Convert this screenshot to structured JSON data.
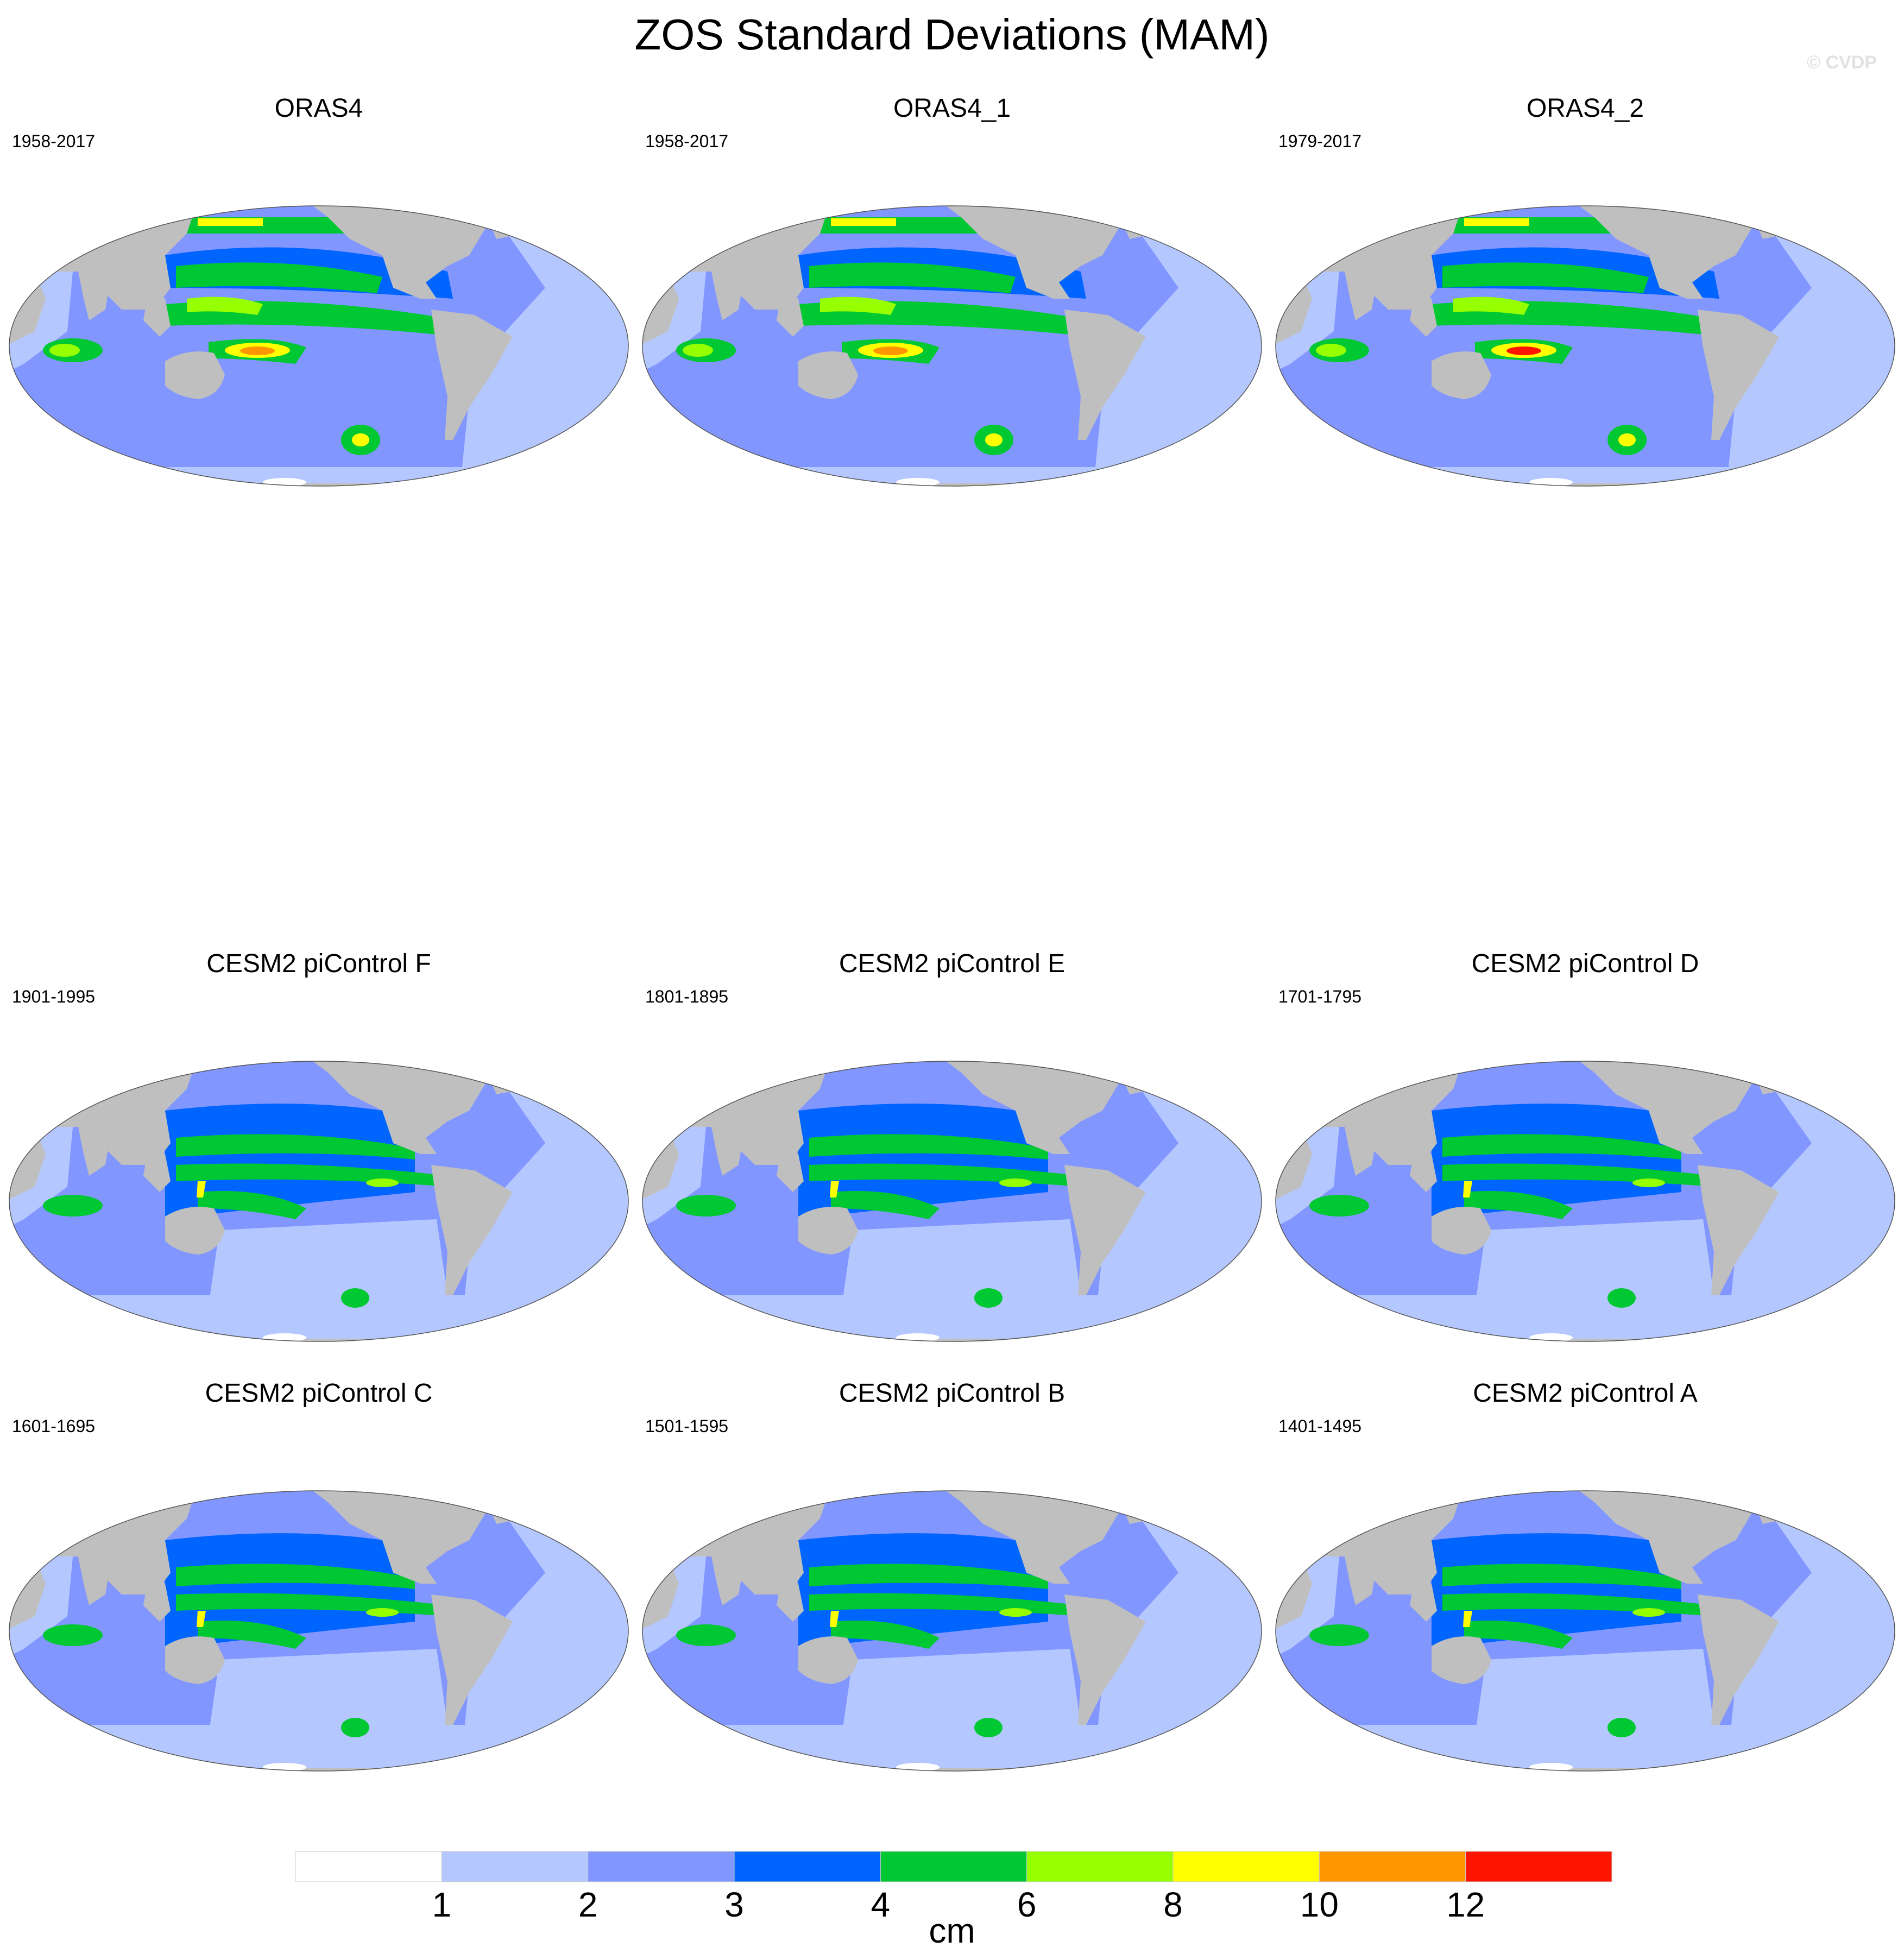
{
  "title": "ZOS Standard Deviations (MAM)",
  "copyright": "© CVDP",
  "panels": [
    {
      "title": "ORAS4",
      "period": "1958-2017"
    },
    {
      "title": "ORAS4_1",
      "period": "1958-2017"
    },
    {
      "title": "ORAS4_2",
      "period": "1979-2017"
    },
    {
      "title": "CESM2 piControl F",
      "period": "1901-1995"
    },
    {
      "title": "CESM2 piControl E",
      "period": "1801-1895"
    },
    {
      "title": "CESM2 piControl D",
      "period": "1701-1795"
    },
    {
      "title": "CESM2 piControl C",
      "period": "1601-1695"
    },
    {
      "title": "CESM2 piControl B",
      "period": "1501-1595"
    },
    {
      "title": "CESM2 piControl A",
      "period": "1401-1495"
    }
  ],
  "colorbar": {
    "units": "cm",
    "levels": [
      "1",
      "2",
      "3",
      "4",
      "6",
      "8",
      "10",
      "12"
    ],
    "colors": [
      "#ffffff",
      "#b4c8ff",
      "#8296ff",
      "#0064ff",
      "#00c832",
      "#96ff00",
      "#ffff00",
      "#ff9600",
      "#ff1400"
    ]
  },
  "map_colors": {
    "land": "#bfbfbf",
    "ice": "#ffffff"
  }
}
